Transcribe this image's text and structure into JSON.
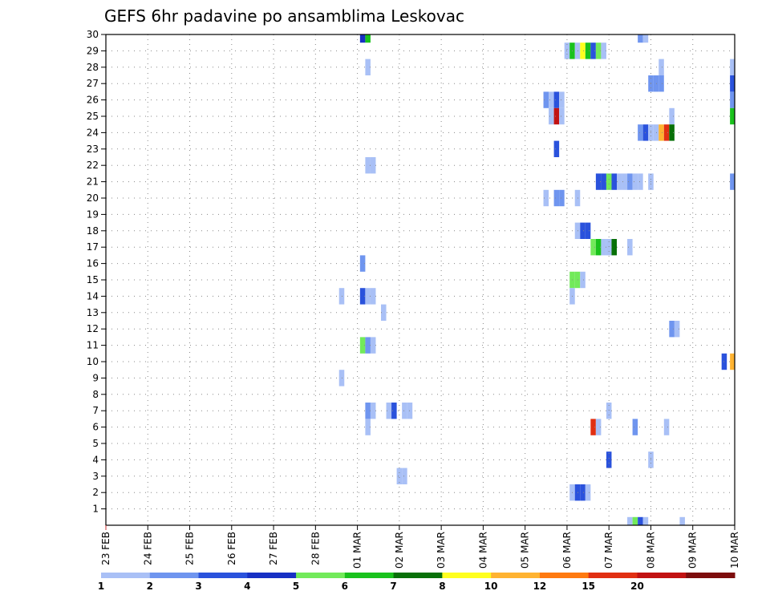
{
  "chart_data": {
    "type": "heatmap",
    "title": "GEFS 6hr padavine po ansamblima Leskovac",
    "x_labels": [
      "23 FEB",
      "24 FEB",
      "25 FEB",
      "26 FEB",
      "27 FEB",
      "28 FEB",
      "01 MAR",
      "02 MAR",
      "03 MAR",
      "04 MAR",
      "05 MAR",
      "06 MAR",
      "07 MAR",
      "08 MAR",
      "09 MAR",
      "10 MAR"
    ],
    "x_range": [
      0,
      60
    ],
    "y_labels": [
      "1",
      "2",
      "3",
      "4",
      "5",
      "6",
      "7",
      "8",
      "9",
      "10",
      "11",
      "12",
      "13",
      "14",
      "15",
      "16",
      "17",
      "18",
      "19",
      "20",
      "21",
      "22",
      "23",
      "24",
      "25",
      "26",
      "27",
      "28",
      "29",
      "30"
    ],
    "y_range": [
      0,
      30
    ],
    "grid": true,
    "levels": [
      "1",
      "2",
      "3",
      "4",
      "5",
      "6",
      "7",
      "8",
      "10",
      "12",
      "15",
      "20"
    ],
    "colors": [
      "#a9c0f6",
      "#6f95ef",
      "#2a52dc",
      "#1730c4",
      "#72ea5a",
      "#19c21c",
      "#087008",
      "#ffff1e",
      "#ffb331",
      "#ff7a10",
      "#e12f12",
      "#c21212",
      "#7d0d0d"
    ],
    "cells": [
      {
        "t": 24.5,
        "m": 30,
        "c": 4
      },
      {
        "t": 25,
        "m": 30,
        "c": 6
      },
      {
        "t": 44,
        "m": 29,
        "c": 1
      },
      {
        "t": 44.5,
        "m": 29,
        "c": 6
      },
      {
        "t": 45,
        "m": 29,
        "c": 1
      },
      {
        "t": 45.5,
        "m": 29,
        "c": 8
      },
      {
        "t": 46,
        "m": 29,
        "c": 6
      },
      {
        "t": 46.5,
        "m": 29,
        "c": 3
      },
      {
        "t": 47,
        "m": 29,
        "c": 5
      },
      {
        "t": 47.5,
        "m": 29,
        "c": 1
      },
      {
        "t": 51,
        "m": 30,
        "c": 2
      },
      {
        "t": 51.5,
        "m": 30,
        "c": 1
      },
      {
        "t": 25,
        "m": 28,
        "c": 1
      },
      {
        "t": 53,
        "m": 28,
        "c": 1
      },
      {
        "t": 59.8,
        "m": 28,
        "c": 1
      },
      {
        "t": 52,
        "m": 27,
        "c": 2
      },
      {
        "t": 52.5,
        "m": 27,
        "c": 2
      },
      {
        "t": 53,
        "m": 27,
        "c": 2
      },
      {
        "t": 59.8,
        "m": 27,
        "c": 3
      },
      {
        "t": 42,
        "m": 26,
        "c": 2
      },
      {
        "t": 42.5,
        "m": 26,
        "c": 1
      },
      {
        "t": 43,
        "m": 26,
        "c": 3
      },
      {
        "t": 43.5,
        "m": 26,
        "c": 1
      },
      {
        "t": 59.8,
        "m": 26,
        "c": 2
      },
      {
        "t": 42.5,
        "m": 25,
        "c": 1
      },
      {
        "t": 43,
        "m": 25,
        "c": 12
      },
      {
        "t": 43.5,
        "m": 25,
        "c": 1
      },
      {
        "t": 54,
        "m": 25,
        "c": 1
      },
      {
        "t": 59.8,
        "m": 25,
        "c": 6
      },
      {
        "t": 51,
        "m": 24,
        "c": 2
      },
      {
        "t": 51.5,
        "m": 24,
        "c": 3
      },
      {
        "t": 52,
        "m": 24,
        "c": 1
      },
      {
        "t": 52.5,
        "m": 24,
        "c": 1
      },
      {
        "t": 53,
        "m": 24,
        "c": 9
      },
      {
        "t": 53.5,
        "m": 24,
        "c": 11
      },
      {
        "t": 54,
        "m": 24,
        "c": 7
      },
      {
        "t": 43,
        "m": 23,
        "c": 3
      },
      {
        "t": 25,
        "m": 22,
        "c": 1
      },
      {
        "t": 25.5,
        "m": 22,
        "c": 1
      },
      {
        "t": 47,
        "m": 21,
        "c": 3
      },
      {
        "t": 47.5,
        "m": 21,
        "c": 3
      },
      {
        "t": 48,
        "m": 21,
        "c": 5
      },
      {
        "t": 48.5,
        "m": 21,
        "c": 3
      },
      {
        "t": 49,
        "m": 21,
        "c": 1
      },
      {
        "t": 49.5,
        "m": 21,
        "c": 1
      },
      {
        "t": 50,
        "m": 21,
        "c": 2
      },
      {
        "t": 50.5,
        "m": 21,
        "c": 1
      },
      {
        "t": 51,
        "m": 21,
        "c": 1
      },
      {
        "t": 52,
        "m": 21,
        "c": 1
      },
      {
        "t": 59.8,
        "m": 21,
        "c": 2
      },
      {
        "t": 42,
        "m": 20,
        "c": 1
      },
      {
        "t": 43,
        "m": 20,
        "c": 2
      },
      {
        "t": 43.5,
        "m": 20,
        "c": 2
      },
      {
        "t": 45,
        "m": 20,
        "c": 1
      },
      {
        "t": 45,
        "m": 18,
        "c": 1
      },
      {
        "t": 45.5,
        "m": 18,
        "c": 3
      },
      {
        "t": 46,
        "m": 18,
        "c": 3
      },
      {
        "t": 46.5,
        "m": 17,
        "c": 5
      },
      {
        "t": 47,
        "m": 17,
        "c": 6
      },
      {
        "t": 47.5,
        "m": 17,
        "c": 1
      },
      {
        "t": 48,
        "m": 17,
        "c": 1
      },
      {
        "t": 48.5,
        "m": 17,
        "c": 7
      },
      {
        "t": 50,
        "m": 17,
        "c": 1
      },
      {
        "t": 24.5,
        "m": 16,
        "c": 2
      },
      {
        "t": 44.5,
        "m": 15,
        "c": 5
      },
      {
        "t": 45,
        "m": 15,
        "c": 5
      },
      {
        "t": 45.5,
        "m": 15,
        "c": 1
      },
      {
        "t": 22.5,
        "m": 14,
        "c": 1
      },
      {
        "t": 24.5,
        "m": 14,
        "c": 3
      },
      {
        "t": 25,
        "m": 14,
        "c": 1
      },
      {
        "t": 25.5,
        "m": 14,
        "c": 1
      },
      {
        "t": 44.5,
        "m": 14,
        "c": 1
      },
      {
        "t": 26.5,
        "m": 13,
        "c": 1
      },
      {
        "t": 54,
        "m": 12,
        "c": 2
      },
      {
        "t": 54.5,
        "m": 12,
        "c": 1
      },
      {
        "t": 24.5,
        "m": 11,
        "c": 5
      },
      {
        "t": 25,
        "m": 11,
        "c": 2
      },
      {
        "t": 25.5,
        "m": 11,
        "c": 1
      },
      {
        "t": 59,
        "m": 10,
        "c": 3
      },
      {
        "t": 59.8,
        "m": 10,
        "c": 9
      },
      {
        "t": 22.5,
        "m": 9,
        "c": 1
      },
      {
        "t": 25,
        "m": 7,
        "c": 2
      },
      {
        "t": 25.5,
        "m": 7,
        "c": 1
      },
      {
        "t": 27,
        "m": 7,
        "c": 1
      },
      {
        "t": 27.5,
        "m": 7,
        "c": 3
      },
      {
        "t": 28.5,
        "m": 7,
        "c": 1
      },
      {
        "t": 29,
        "m": 7,
        "c": 1
      },
      {
        "t": 48,
        "m": 7,
        "c": 1
      },
      {
        "t": 25,
        "m": 6,
        "c": 1
      },
      {
        "t": 46.5,
        "m": 6,
        "c": 11
      },
      {
        "t": 47,
        "m": 6,
        "c": 1
      },
      {
        "t": 50.5,
        "m": 6,
        "c": 2
      },
      {
        "t": 53.5,
        "m": 6,
        "c": 1
      },
      {
        "t": 48,
        "m": 4,
        "c": 3
      },
      {
        "t": 52,
        "m": 4,
        "c": 1
      },
      {
        "t": 28,
        "m": 3,
        "c": 1
      },
      {
        "t": 28.5,
        "m": 3,
        "c": 1
      },
      {
        "t": 44.5,
        "m": 2,
        "c": 1
      },
      {
        "t": 45,
        "m": 2,
        "c": 3
      },
      {
        "t": 45.5,
        "m": 2,
        "c": 3
      },
      {
        "t": 46,
        "m": 2,
        "c": 1
      },
      {
        "t": 50,
        "m": 0,
        "c": 1
      },
      {
        "t": 50.5,
        "m": 0,
        "c": 5
      },
      {
        "t": 51,
        "m": 0,
        "c": 3
      },
      {
        "t": 51.5,
        "m": 0,
        "c": 1
      },
      {
        "t": 55,
        "m": 0,
        "c": 1
      }
    ]
  }
}
